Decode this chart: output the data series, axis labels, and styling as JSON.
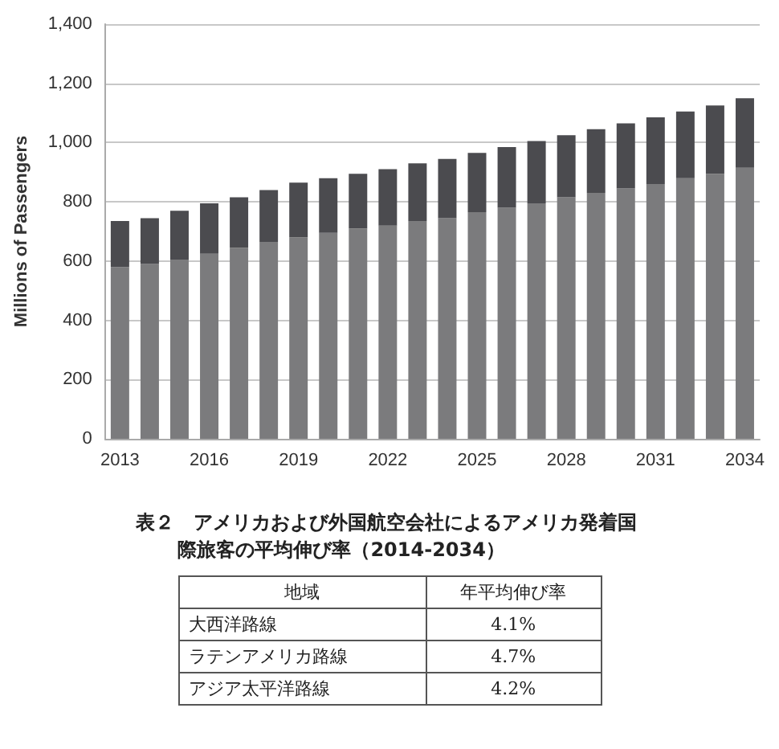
{
  "chart_data": {
    "type": "bar",
    "stacked": true,
    "ylabel": "Millions of Passengers",
    "categories": [
      "2013",
      null,
      null,
      "2016",
      null,
      null,
      "2019",
      null,
      null,
      "2022",
      null,
      null,
      "2025",
      null,
      null,
      "2028",
      null,
      null,
      "2031",
      null,
      null,
      "2034"
    ],
    "series": [
      {
        "color": "#7b7b7d",
        "values": [
          580,
          590,
          605,
          625,
          645,
          665,
          680,
          695,
          710,
          720,
          735,
          745,
          765,
          780,
          795,
          815,
          830,
          845,
          860,
          880,
          895,
          915
        ]
      },
      {
        "color": "#4b4b4f",
        "values": [
          155,
          155,
          165,
          170,
          170,
          175,
          185,
          185,
          185,
          190,
          195,
          200,
          200,
          205,
          210,
          210,
          215,
          220,
          225,
          225,
          230,
          235
        ]
      }
    ],
    "ylim": [
      0,
      1400
    ],
    "yticks": [
      0,
      200,
      400,
      600,
      800,
      {
        "value": 1000,
        "label": "1,000"
      },
      {
        "value": 1200,
        "label": "1,200"
      },
      {
        "value": 1400,
        "label": "1,400"
      }
    ],
    "grid": "y",
    "annotations": [
      "表２　アメリカおよび外国航空会社によるアメリカ発着国際旅客の平均伸び率（2014-2034）",
      "地域",
      "年平均伸び率",
      "大西洋路線",
      "4.1%",
      "ラテンアメリカ路線",
      "4.7%",
      "アジア太平洋路線",
      "4.2%"
    ]
  }
}
